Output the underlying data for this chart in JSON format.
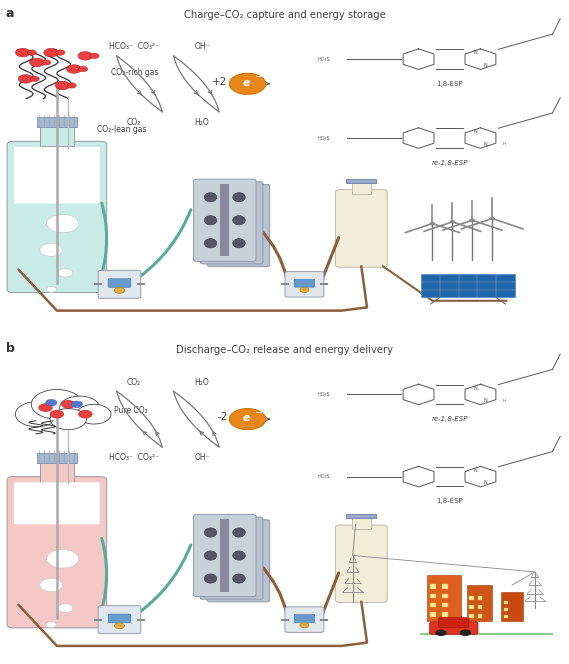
{
  "title_a": "Charge–CO₂ capture and energy storage",
  "title_b": "Discharge–CO₂ release and energy delivery",
  "label_a": "a",
  "label_b": "b",
  "bg_color": "#ffffff",
  "text_color": "#404040",
  "molecule_color": "#555555",
  "arrow_color": "#555555",
  "electron_circle_color": "#e8861a",
  "bottle_a_fill": "#c8ebe8",
  "bottle_b_fill": "#f5c8c8",
  "bottle_neck_fill": "#d8d8e8",
  "bottle_storage_fill": "#f0edd8",
  "tube_color_teal": "#5aaa99",
  "tube_color_brown": "#8B5E3C",
  "co2_particle_color": "#e84040",
  "flow_cell_color": "#b8c0cc",
  "pump_color": "#d8e0e8",
  "dpi": 100,
  "figsize": [
    5.69,
    6.64
  ]
}
